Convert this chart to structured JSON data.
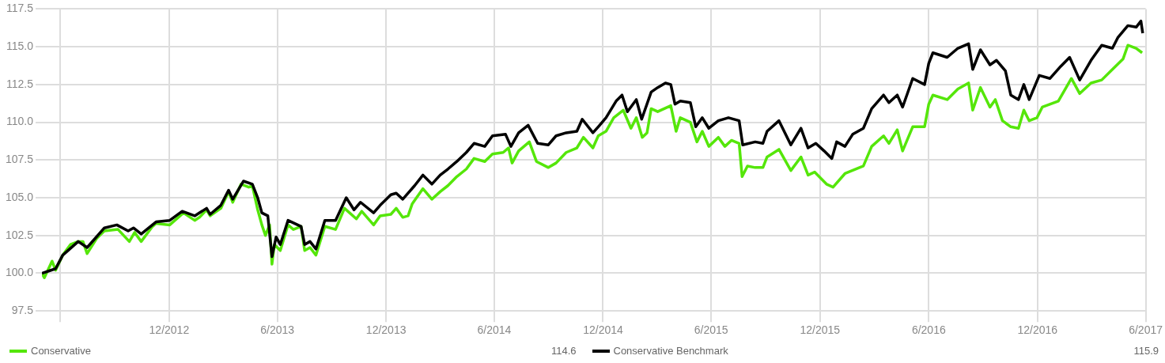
{
  "chart_data": {
    "type": "line",
    "xlim": [
      "2012-05-01",
      "2017-06-01"
    ],
    "xticks": [
      {
        "value": "2012-06-01",
        "label": null
      },
      {
        "value": "2012-12-01",
        "label": "12/2012"
      },
      {
        "value": "2013-06-01",
        "label": "6/2013"
      },
      {
        "value": "2013-12-01",
        "label": "12/2013"
      },
      {
        "value": "2014-06-01",
        "label": "6/2014"
      },
      {
        "value": "2014-12-01",
        "label": "12/2014"
      },
      {
        "value": "2015-06-01",
        "label": "6/2015"
      },
      {
        "value": "2015-12-01",
        "label": "12/2015"
      },
      {
        "value": "2016-06-01",
        "label": "6/2016"
      },
      {
        "value": "2016-12-01",
        "label": "12/2016"
      },
      {
        "value": "2017-06-01",
        "label": "6/2017"
      }
    ],
    "ylim": [
      97.5,
      117.5
    ],
    "yticks": [
      {
        "value": 97.5,
        "label": "97.5"
      },
      {
        "value": 100,
        "label": "100.0"
      },
      {
        "value": 102.5,
        "label": "102.5"
      },
      {
        "value": 105,
        "label": "105.0"
      },
      {
        "value": 107.5,
        "label": "107.5"
      },
      {
        "value": 110,
        "label": "110.0"
      },
      {
        "value": 112.5,
        "label": "112.5"
      },
      {
        "value": 115,
        "label": "115.0"
      },
      {
        "value": 117.5,
        "label": "117.5"
      }
    ],
    "grid": true,
    "legend": "bottom",
    "marker": "none",
    "line_style": "solid",
    "annotations": [
      "114.6",
      "115.9"
    ],
    "series": [
      {
        "name": "Conservative",
        "color": "#55e60a",
        "x": [
          "2012-05-01",
          "2012-05-05",
          "2012-05-18",
          "2012-05-24",
          "2012-06-05",
          "2012-06-18",
          "2012-07-01",
          "2012-07-09",
          "2012-07-16",
          "2012-08-01",
          "2012-08-14",
          "2012-09-06",
          "2012-09-25",
          "2012-10-04",
          "2012-10-15",
          "2012-11-03",
          "2012-11-09",
          "2012-12-02",
          "2012-12-25",
          "2013-01-13",
          "2013-01-21",
          "2013-02-02",
          "2013-02-08",
          "2013-02-26",
          "2013-03-11",
          "2013-03-18",
          "2013-04-01",
          "2013-04-14",
          "2013-04-20",
          "2013-04-29",
          "2013-05-06",
          "2013-05-12",
          "2013-05-19",
          "2013-05-23",
          "2013-05-27",
          "2013-06-06",
          "2013-06-19",
          "2013-06-28",
          "2013-07-11",
          "2013-07-17",
          "2013-07-26",
          "2013-08-05",
          "2013-08-20",
          "2013-09-07",
          "2013-09-22",
          "2013-10-12",
          "2013-10-21",
          "2013-11-10",
          "2013-11-21",
          "2013-12-09",
          "2013-12-18",
          "2013-12-29",
          "2014-01-07",
          "2014-01-14",
          "2014-02-01",
          "2014-02-16",
          "2014-03-02",
          "2014-03-15",
          "2014-03-30",
          "2014-04-15",
          "2014-04-28",
          "2014-05-16",
          "2014-05-29",
          "2014-06-16",
          "2014-06-25",
          "2014-07-01",
          "2014-07-12",
          "2014-07-30",
          "2014-08-11",
          "2014-08-31",
          "2014-09-13",
          "2014-09-30",
          "2014-10-18",
          "2014-10-29",
          "2014-11-14",
          "2014-11-23",
          "2014-12-06",
          "2014-12-19",
          "2015-01-04",
          "2015-01-17",
          "2015-01-26",
          "2015-02-05",
          "2015-02-13",
          "2015-02-20",
          "2015-03-03",
          "2015-03-25",
          "2015-04-03",
          "2015-04-10",
          "2015-04-27",
          "2015-05-08",
          "2015-05-17",
          "2015-05-28",
          "2015-06-13",
          "2015-06-24",
          "2015-07-05",
          "2015-07-18",
          "2015-07-23",
          "2015-08-01",
          "2015-08-14",
          "2015-08-27",
          "2015-09-03",
          "2015-09-23",
          "2015-10-13",
          "2015-10-30",
          "2015-11-11",
          "2015-11-22",
          "2015-12-12",
          "2015-12-23",
          "2016-01-12",
          "2016-02-12",
          "2016-02-26",
          "2016-03-17",
          "2016-03-26",
          "2016-04-09",
          "2016-04-18",
          "2016-05-05",
          "2016-05-25",
          "2016-06-01",
          "2016-06-08",
          "2016-07-02",
          "2016-07-20",
          "2016-08-07",
          "2016-08-14",
          "2016-08-27",
          "2016-09-12",
          "2016-09-21",
          "2016-10-03",
          "2016-10-17",
          "2016-10-30",
          "2016-11-08",
          "2016-11-17",
          "2016-11-30",
          "2016-12-09",
          "2017-01-05",
          "2017-01-27",
          "2017-02-10",
          "2017-03-01",
          "2017-03-19",
          "2017-04-06",
          "2017-04-24",
          "2017-05-02",
          "2017-05-16",
          "2017-05-26"
        ],
        "values": [
          100.0,
          99.7,
          100.8,
          100.2,
          101.2,
          101.9,
          102.1,
          102.1,
          101.3,
          102.3,
          102.8,
          102.9,
          102.1,
          102.7,
          102.1,
          103.1,
          103.3,
          103.2,
          104.0,
          103.5,
          103.7,
          104.2,
          103.8,
          104.3,
          105.4,
          104.7,
          105.9,
          105.7,
          105.8,
          104.2,
          103.2,
          102.5,
          103.2,
          100.6,
          101.9,
          101.5,
          103.2,
          102.9,
          103.1,
          101.5,
          101.7,
          101.2,
          103.1,
          102.9,
          104.3,
          103.6,
          104.1,
          103.2,
          103.8,
          103.9,
          104.3,
          103.7,
          103.8,
          104.6,
          105.6,
          104.9,
          105.4,
          105.8,
          106.4,
          106.9,
          107.6,
          107.4,
          107.9,
          108.0,
          108.3,
          107.3,
          108.1,
          108.7,
          107.4,
          107.0,
          107.3,
          108.0,
          108.3,
          109.0,
          108.3,
          109.1,
          109.4,
          110.3,
          110.8,
          109.6,
          110.3,
          109.0,
          109.3,
          110.9,
          110.7,
          111.1,
          109.4,
          110.3,
          110.0,
          108.7,
          109.4,
          108.4,
          109.0,
          108.4,
          108.8,
          108.6,
          106.4,
          107.1,
          107.0,
          107.0,
          107.7,
          108.2,
          106.8,
          107.7,
          106.5,
          106.7,
          105.9,
          105.7,
          106.6,
          107.1,
          108.4,
          109.1,
          108.6,
          109.5,
          108.1,
          109.7,
          109.7,
          111.2,
          111.8,
          111.5,
          112.2,
          112.6,
          110.8,
          112.3,
          111.0,
          111.5,
          110.1,
          109.7,
          109.6,
          110.8,
          110.1,
          110.3,
          111.0,
          111.4,
          112.9,
          111.9,
          112.6,
          112.8,
          113.5,
          114.2,
          115.1,
          114.9,
          114.6
        ]
      },
      {
        "name": "Conservative Benchmark",
        "color": "#000000",
        "x": [
          "2012-05-01",
          "2012-05-24",
          "2012-06-05",
          "2012-07-01",
          "2012-07-16",
          "2012-08-14",
          "2012-09-04",
          "2012-09-23",
          "2012-10-02",
          "2012-10-15",
          "2012-11-09",
          "2012-12-02",
          "2012-12-23",
          "2013-01-13",
          "2013-02-02",
          "2013-02-08",
          "2013-02-26",
          "2013-03-11",
          "2013-03-18",
          "2013-04-05",
          "2013-04-20",
          "2013-04-29",
          "2013-05-06",
          "2013-05-16",
          "2013-05-23",
          "2013-05-30",
          "2013-06-06",
          "2013-06-19",
          "2013-07-11",
          "2013-07-17",
          "2013-07-26",
          "2013-08-05",
          "2013-08-20",
          "2013-09-07",
          "2013-09-25",
          "2013-10-08",
          "2013-10-19",
          "2013-11-10",
          "2013-11-21",
          "2013-12-09",
          "2013-12-18",
          "2013-12-29",
          "2014-01-18",
          "2014-02-01",
          "2014-02-16",
          "2014-03-02",
          "2014-03-15",
          "2014-03-30",
          "2014-04-15",
          "2014-04-28",
          "2014-05-16",
          "2014-05-29",
          "2014-06-20",
          "2014-06-29",
          "2014-07-12",
          "2014-07-28",
          "2014-08-13",
          "2014-08-31",
          "2014-09-13",
          "2014-09-30",
          "2014-10-18",
          "2014-10-27",
          "2014-11-14",
          "2014-11-23",
          "2014-12-06",
          "2014-12-23",
          "2015-01-02",
          "2015-01-11",
          "2015-01-26",
          "2015-02-04",
          "2015-02-20",
          "2015-03-03",
          "2015-03-16",
          "2015-03-25",
          "2015-04-01",
          "2015-04-10",
          "2015-04-27",
          "2015-05-06",
          "2015-05-17",
          "2015-05-28",
          "2015-06-13",
          "2015-06-30",
          "2015-07-18",
          "2015-07-24",
          "2015-08-14",
          "2015-08-27",
          "2015-09-03",
          "2015-09-23",
          "2015-10-13",
          "2015-10-30",
          "2015-11-11",
          "2015-11-24",
          "2015-12-08",
          "2015-12-21",
          "2015-12-29",
          "2016-01-12",
          "2016-01-25",
          "2016-02-12",
          "2016-02-26",
          "2016-03-17",
          "2016-03-26",
          "2016-04-09",
          "2016-04-18",
          "2016-05-05",
          "2016-05-25",
          "2016-06-01",
          "2016-06-08",
          "2016-07-02",
          "2016-07-20",
          "2016-08-07",
          "2016-08-14",
          "2016-08-27",
          "2016-09-12",
          "2016-09-23",
          "2016-10-08",
          "2016-10-17",
          "2016-10-30",
          "2016-11-08",
          "2016-11-17",
          "2016-12-04",
          "2016-12-22",
          "2017-01-09",
          "2017-01-24",
          "2017-02-10",
          "2017-03-01",
          "2017-03-19",
          "2017-04-06",
          "2017-04-15",
          "2017-05-02",
          "2017-05-16",
          "2017-05-24",
          "2017-05-27"
        ],
        "values": [
          100.0,
          100.3,
          101.2,
          102.1,
          101.7,
          103.0,
          103.2,
          102.8,
          103.0,
          102.6,
          103.4,
          103.5,
          104.1,
          103.8,
          104.3,
          103.9,
          104.5,
          105.5,
          104.9,
          106.1,
          105.9,
          105.0,
          104.0,
          103.8,
          101.1,
          102.4,
          101.9,
          103.5,
          103.1,
          101.9,
          102.1,
          101.6,
          103.5,
          103.5,
          105.0,
          104.2,
          104.7,
          104.0,
          104.5,
          105.2,
          105.3,
          104.9,
          105.8,
          106.5,
          105.9,
          106.5,
          106.9,
          107.4,
          108.0,
          108.6,
          108.4,
          109.1,
          109.2,
          108.4,
          109.3,
          109.8,
          108.6,
          108.5,
          109.1,
          109.3,
          109.4,
          110.2,
          109.3,
          109.7,
          110.3,
          111.4,
          111.8,
          110.7,
          111.5,
          110.2,
          112.0,
          112.3,
          112.6,
          112.5,
          111.2,
          111.4,
          111.3,
          109.7,
          110.3,
          109.6,
          110.1,
          110.3,
          110.1,
          108.5,
          108.7,
          108.6,
          109.4,
          110.1,
          108.5,
          109.6,
          108.3,
          108.6,
          108.1,
          107.6,
          108.7,
          108.4,
          109.2,
          109.6,
          110.9,
          111.8,
          111.3,
          111.8,
          111.0,
          112.9,
          112.5,
          113.9,
          114.6,
          114.3,
          114.9,
          115.2,
          113.5,
          114.8,
          113.8,
          114.1,
          113.4,
          111.8,
          111.5,
          112.5,
          111.5,
          113.1,
          112.9,
          113.7,
          114.3,
          112.8,
          114.1,
          115.1,
          114.9,
          115.6,
          116.4,
          116.3,
          116.7,
          115.9
        ]
      }
    ]
  }
}
